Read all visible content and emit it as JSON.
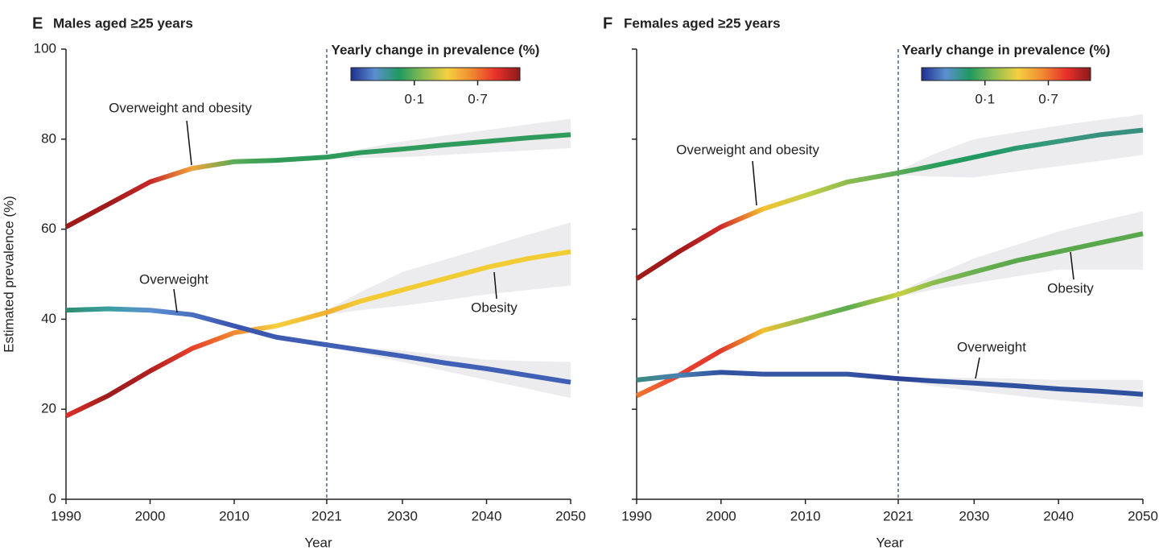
{
  "chart_data": [
    {
      "type": "line",
      "panel_label": "E",
      "title": "Males aged ≥25 years",
      "xlabel": "Year",
      "ylabel": "Estimated prevalence (%)",
      "x": [
        1990,
        1995,
        2000,
        2005,
        2010,
        2015,
        2021,
        2025,
        2030,
        2035,
        2040,
        2045,
        2050
      ],
      "xlim": [
        1990,
        2050
      ],
      "xticks": [
        1990,
        2000,
        2010,
        2021,
        2030,
        2040,
        2050
      ],
      "ylim": [
        0,
        100
      ],
      "yticks": [
        0,
        20,
        40,
        60,
        80,
        100
      ],
      "vline": 2021,
      "series": [
        {
          "name": "Overweight and obesity",
          "values": [
            60.5,
            65.5,
            70.5,
            73.5,
            75,
            75.3,
            76,
            77,
            77.8,
            78.7,
            79.5,
            80.3,
            81
          ],
          "upper": [
            null,
            null,
            null,
            null,
            null,
            null,
            76.5,
            77.8,
            79.5,
            80.8,
            82,
            83.3,
            84.5
          ],
          "lower": [
            null,
            null,
            null,
            null,
            null,
            null,
            75.5,
            75.8,
            76,
            76.5,
            77,
            77.5,
            78
          ],
          "colors": [
            "#a01a1a",
            "#a01a1a",
            "#c62828",
            "#f2a33a",
            "#5aac58",
            "#2e9c57",
            "#2e9a5b",
            "#2e9a5b",
            "#2e9a5b",
            "#2e9a5b",
            "#2e9a5b",
            "#2e9a5b",
            "#2e9a5b"
          ]
        },
        {
          "name": "Obesity",
          "values": [
            18.5,
            23,
            28.5,
            33.5,
            37,
            38.5,
            41.5,
            44,
            46.5,
            49,
            51.5,
            53.5,
            55
          ],
          "upper": [
            null,
            null,
            null,
            null,
            null,
            null,
            42,
            46,
            50.5,
            53.2,
            56,
            58.8,
            61.5
          ],
          "lower": [
            null,
            null,
            null,
            null,
            null,
            null,
            41,
            42,
            43,
            44.2,
            45.5,
            46.5,
            47.5
          ],
          "colors": [
            "#e0302a",
            "#9b1c1c",
            "#b02020",
            "#e8402a",
            "#f08a30",
            "#f5d040",
            "#f2b030",
            "#f2cc35",
            "#f2cc35",
            "#f2cc35",
            "#f2cc35",
            "#f2cc35",
            "#f2cc35"
          ]
        },
        {
          "name": "Overweight",
          "values": [
            42,
            42.3,
            42,
            41,
            38.5,
            36,
            34.3,
            33.2,
            31.8,
            30.3,
            29,
            27.5,
            26
          ],
          "upper": [
            null,
            null,
            null,
            null,
            null,
            null,
            34.7,
            33.8,
            33,
            32,
            31,
            30.7,
            30.5
          ],
          "lower": [
            null,
            null,
            null,
            null,
            null,
            null,
            34,
            32.3,
            30.5,
            28.5,
            26.5,
            24.5,
            22.5
          ],
          "colors": [
            "#2e8c6f",
            "#3aa0a0",
            "#5b8fd0",
            "#4a6fc0",
            "#3a55b0",
            "#3c5ab0",
            "#4060b5",
            "#4060b5",
            "#4060b5",
            "#4060b5",
            "#4060b5",
            "#4060b5",
            "#4060b5"
          ]
        }
      ],
      "colorbar": {
        "title": "Yearly change in prevalence (%)",
        "lim": [
          -0.5,
          1.1
        ],
        "colors": [
          "#1f2f8f",
          "#5b8fd0",
          "#1f9960",
          "#8cbc50",
          "#f5d040",
          "#f08a30",
          "#e8302a",
          "#8b1a1a"
        ],
        "ticks": [
          {
            "value": 0.1,
            "label": "0·1"
          },
          {
            "value": 0.7,
            "label": "0·7"
          }
        ]
      }
    },
    {
      "type": "line",
      "panel_label": "F",
      "title": "Females aged ≥25 years",
      "xlabel": "Year",
      "x": [
        1990,
        1995,
        2000,
        2005,
        2010,
        2015,
        2021,
        2025,
        2030,
        2035,
        2040,
        2045,
        2050
      ],
      "xlim": [
        1990,
        2050
      ],
      "xticks": [
        1990,
        2000,
        2010,
        2021,
        2030,
        2040,
        2050
      ],
      "ylim": [
        0,
        100
      ],
      "yticks": [
        0,
        20,
        40,
        60,
        80,
        100
      ],
      "vline": 2021,
      "series": [
        {
          "name": "Overweight and obesity",
          "values": [
            49,
            55,
            60.5,
            64.5,
            67.5,
            70.5,
            72.5,
            74,
            76,
            78,
            79.5,
            81,
            82
          ],
          "upper": [
            null,
            null,
            null,
            null,
            null,
            null,
            73,
            76.5,
            80,
            81.5,
            83,
            84.3,
            85.5
          ],
          "lower": [
            null,
            null,
            null,
            null,
            null,
            null,
            72,
            71.7,
            71.5,
            72.8,
            74,
            75.2,
            76.5
          ],
          "colors": [
            "#a01a1a",
            "#a01a1a",
            "#d02a2a",
            "#f5c030",
            "#c5cf45",
            "#8cbc50",
            "#5aac58",
            "#2e9e5a",
            "#1f9960",
            "#2a9a70",
            "#3a9880",
            "#3a9080",
            "#3a9080"
          ]
        },
        {
          "name": "Obesity",
          "values": [
            23,
            27.5,
            33,
            37.5,
            40,
            42.5,
            45.5,
            48,
            50.5,
            53,
            55,
            57,
            59
          ],
          "upper": [
            null,
            null,
            null,
            null,
            null,
            null,
            46,
            49.5,
            53.5,
            56.5,
            59.5,
            61.8,
            64
          ],
          "lower": [
            null,
            null,
            null,
            null,
            null,
            null,
            45,
            46.5,
            48,
            49.5,
            51,
            51,
            51
          ],
          "colors": [
            "#f07830",
            "#e84030",
            "#e03a2a",
            "#f2c030",
            "#8cbc50",
            "#5aac50",
            "#c8d040",
            "#8cbc50",
            "#6ab050",
            "#5aa84c",
            "#5aa84c",
            "#5aa84c",
            "#5aa84c"
          ]
        },
        {
          "name": "Overweight",
          "values": [
            26.5,
            27.5,
            28.2,
            27.8,
            27.8,
            27.8,
            26.8,
            26.3,
            25.8,
            25.2,
            24.5,
            24,
            23.3
          ],
          "upper": [
            null,
            null,
            null,
            null,
            null,
            null,
            27,
            27,
            27,
            26.8,
            26.5,
            26.5,
            26.5
          ],
          "lower": [
            null,
            null,
            null,
            null,
            null,
            null,
            26.5,
            25.2,
            24,
            23,
            22,
            21.2,
            20.5
          ],
          "colors": [
            "#3a8a80",
            "#4a80b0",
            "#3050a0",
            "#3555a5",
            "#3555a5",
            "#3555a5",
            "#2a3f95",
            "#3050a0",
            "#3050a0",
            "#3050a0",
            "#3050a0",
            "#3050a0",
            "#3050a0"
          ]
        }
      ],
      "colorbar": {
        "title": "Yearly change in prevalence (%)",
        "lim": [
          -0.5,
          1.1
        ],
        "colors": [
          "#1f2f8f",
          "#5b8fd0",
          "#1f9960",
          "#8cbc50",
          "#f5d040",
          "#f08a30",
          "#e8302a",
          "#8b1a1a"
        ],
        "ticks": [
          {
            "value": 0.1,
            "label": "0·1"
          },
          {
            "value": 0.7,
            "label": "0·7"
          }
        ]
      }
    }
  ]
}
